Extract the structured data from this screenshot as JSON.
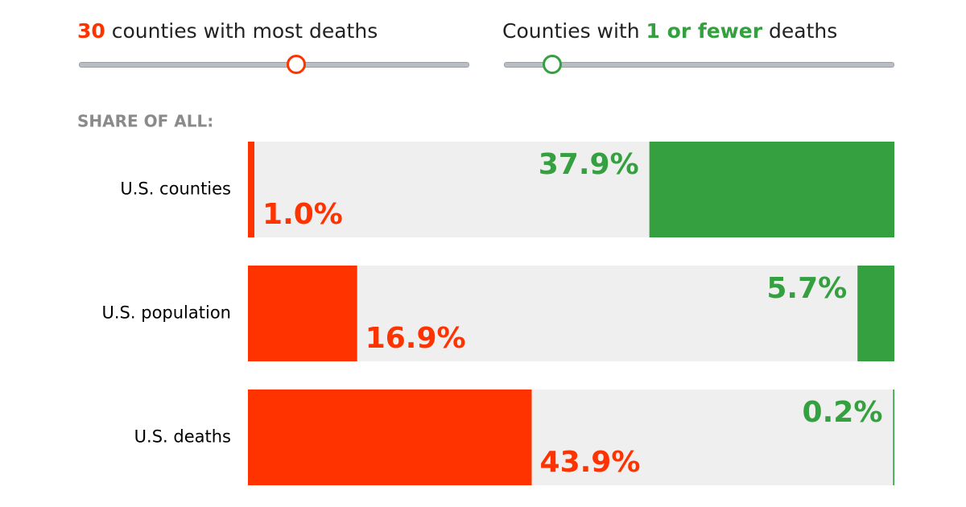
{
  "controls": [
    {
      "parts": [
        "30",
        "counties with most deaths"
      ]
    },
    {
      "parts": [
        "Counties with",
        "1 or fewer",
        "deaths"
      ]
    }
  ],
  "chart_data": {
    "type": "bar",
    "subtitle": "SHARE OF ALL:",
    "categories": [
      "U.S. counties",
      "U.S. population",
      "U.S. deaths"
    ],
    "xlim": [
      0,
      100
    ],
    "series": [
      {
        "color": "#ff3300",
        "anchor": "left",
        "values": [
          1.0,
          16.9,
          43.9
        ],
        "value_labels": [
          "1.0%",
          "16.9%",
          "43.9%"
        ]
      },
      {
        "color": "#34a040",
        "anchor": "right",
        "values": [
          37.9,
          5.7,
          0.2
        ],
        "value_labels": [
          "37.9%",
          "5.7%",
          "0.2%"
        ]
      }
    ]
  }
}
